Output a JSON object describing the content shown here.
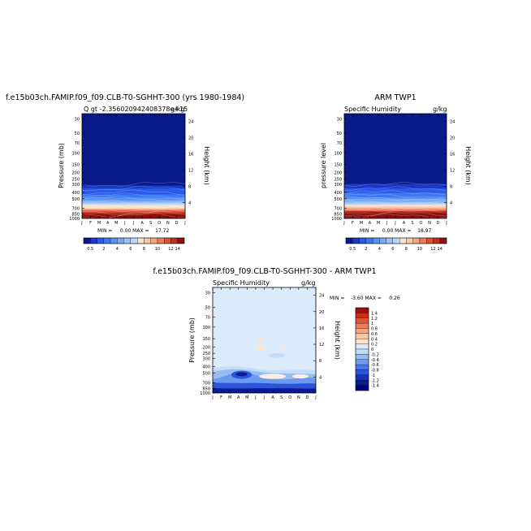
{
  "chart_data": [
    {
      "type": "heatmap",
      "title": "f.e15b03ch.FAMIP.f09_f09.CLB-T0-SGHHT-300 (yrs 1980-1984)",
      "subtitle": "Q gt -2.356020942408378e+15",
      "subtitle_right": "g/kg",
      "ylabel": "Pressure (mb)",
      "ylabel_right": "Height (km)",
      "x_ticklabels": [
        "J",
        "F",
        "M",
        "A",
        "M",
        "J",
        "J",
        "A",
        "S",
        "O",
        "N",
        "D",
        "J"
      ],
      "y_ticklabels": [
        "30",
        "50",
        "70",
        "100",
        "150",
        "200",
        "250",
        "300",
        "400",
        "500",
        "700",
        "850",
        "1000"
      ],
      "y_pressure": [
        30,
        50,
        70,
        100,
        150,
        200,
        250,
        300,
        400,
        500,
        700,
        850,
        1000
      ],
      "y_right_ticklabels": [
        "4",
        "8",
        "12",
        "16",
        "20",
        "24"
      ],
      "y_right_km": [
        4,
        8,
        12,
        16,
        20,
        24
      ],
      "stats": "MIN =     0.00 MAX =    17.72",
      "min": 0.0,
      "max": 17.72,
      "colorbar_ticklabels": [
        "0.5",
        "2",
        "4",
        "6",
        "8",
        "10",
        "12",
        "14"
      ],
      "profile_levels": [
        30,
        50,
        70,
        100,
        150,
        200,
        250,
        300,
        400,
        500,
        700,
        850,
        1000
      ],
      "profile_values": [
        0,
        0,
        0,
        0,
        0.01,
        0.03,
        0.1,
        0.4,
        1.4,
        3.2,
        8.5,
        13.5,
        17.5
      ]
    },
    {
      "type": "heatmap",
      "title": "ARM TWP1",
      "subtitle": "Specific Humidity",
      "subtitle_right": "g/kg",
      "ylabel": "pressure level",
      "ylabel_right": "Height (km)",
      "x_ticklabels": [
        "J",
        "F",
        "M",
        "A",
        "M",
        "J",
        "J",
        "A",
        "S",
        "O",
        "N",
        "D",
        "J"
      ],
      "y_ticklabels": [
        "30",
        "50",
        "70",
        "100",
        "150",
        "200",
        "250",
        "300",
        "400",
        "500",
        "700",
        "850",
        "1000"
      ],
      "y_pressure": [
        30,
        50,
        70,
        100,
        150,
        200,
        250,
        300,
        400,
        500,
        700,
        850,
        1000
      ],
      "y_right_ticklabels": [
        "4",
        "8",
        "12",
        "16",
        "20",
        "24"
      ],
      "y_right_km": [
        4,
        8,
        12,
        16,
        20,
        24
      ],
      "stats": "MIN =     0.00 MAX =    18.97",
      "min": 0.0,
      "max": 18.97,
      "colorbar_ticklabels": [
        "0.5",
        "2",
        "4",
        "6",
        "8",
        "10",
        "12",
        "14"
      ],
      "profile_levels": [
        30,
        50,
        70,
        100,
        150,
        200,
        250,
        300,
        400,
        500,
        700,
        850,
        1000
      ],
      "profile_values": [
        0,
        0,
        0,
        0,
        0.01,
        0.04,
        0.12,
        0.45,
        1.6,
        3.6,
        9,
        14,
        18.5
      ]
    },
    {
      "type": "heatmap",
      "title": "f.e15b03ch.FAMIP.f09_f09.CLB-T0-SGHHT-300 - ARM TWP1",
      "subtitle": "Specific Humidity",
      "subtitle_right": "g/kg",
      "ylabel": "Pressure (mb)",
      "ylabel_right": "Height (km)",
      "x_ticklabels": [
        "J",
        "F",
        "M",
        "A",
        "M",
        "J",
        "J",
        "A",
        "S",
        "O",
        "N",
        "D",
        "J"
      ],
      "y_ticklabels": [
        "30",
        "50",
        "70",
        "100",
        "150",
        "200",
        "250",
        "300",
        "400",
        "500",
        "700",
        "850",
        "1000"
      ],
      "y_pressure": [
        30,
        50,
        70,
        100,
        150,
        200,
        250,
        300,
        400,
        500,
        700,
        850,
        1000
      ],
      "y_right_ticklabels": [
        "4",
        "8",
        "12",
        "16",
        "20",
        "24"
      ],
      "y_right_km": [
        4,
        8,
        12,
        16,
        20,
        24
      ],
      "stats": "MIN =    -3.60 MAX =     0.26",
      "min": -3.6,
      "max": 0.26,
      "colorbar_ticklabels": [
        "1.4",
        "1.2",
        "1",
        "0.8",
        "0.6",
        "0.4",
        "0.2",
        "0",
        "-0.2",
        "-0.4",
        "-0.6",
        "-0.8",
        "-1",
        "-1.2",
        "-1.4"
      ]
    }
  ],
  "colors": {
    "q_scale": [
      "#0a1a8a",
      "#1a38c8",
      "#2a5ae8",
      "#3c78f0",
      "#5a92f2",
      "#7aaaf4",
      "#9cc2f6",
      "#bad6f8",
      "#f6e4d0",
      "#f8c8a8",
      "#f4a480",
      "#ec7c58",
      "#d85436",
      "#c0301e",
      "#8e1010"
    ],
    "diff_scale": [
      "#000080",
      "#0a1a9a",
      "#1433b8",
      "#2a55d8",
      "#4878e8",
      "#6e9aee",
      "#98bcf2",
      "#c4dcf8",
      "#dcebfc",
      "#fce4cc",
      "#fcc8a4",
      "#f8a47e",
      "#f07c58",
      "#e05434",
      "#c83018",
      "#a01010"
    ]
  }
}
